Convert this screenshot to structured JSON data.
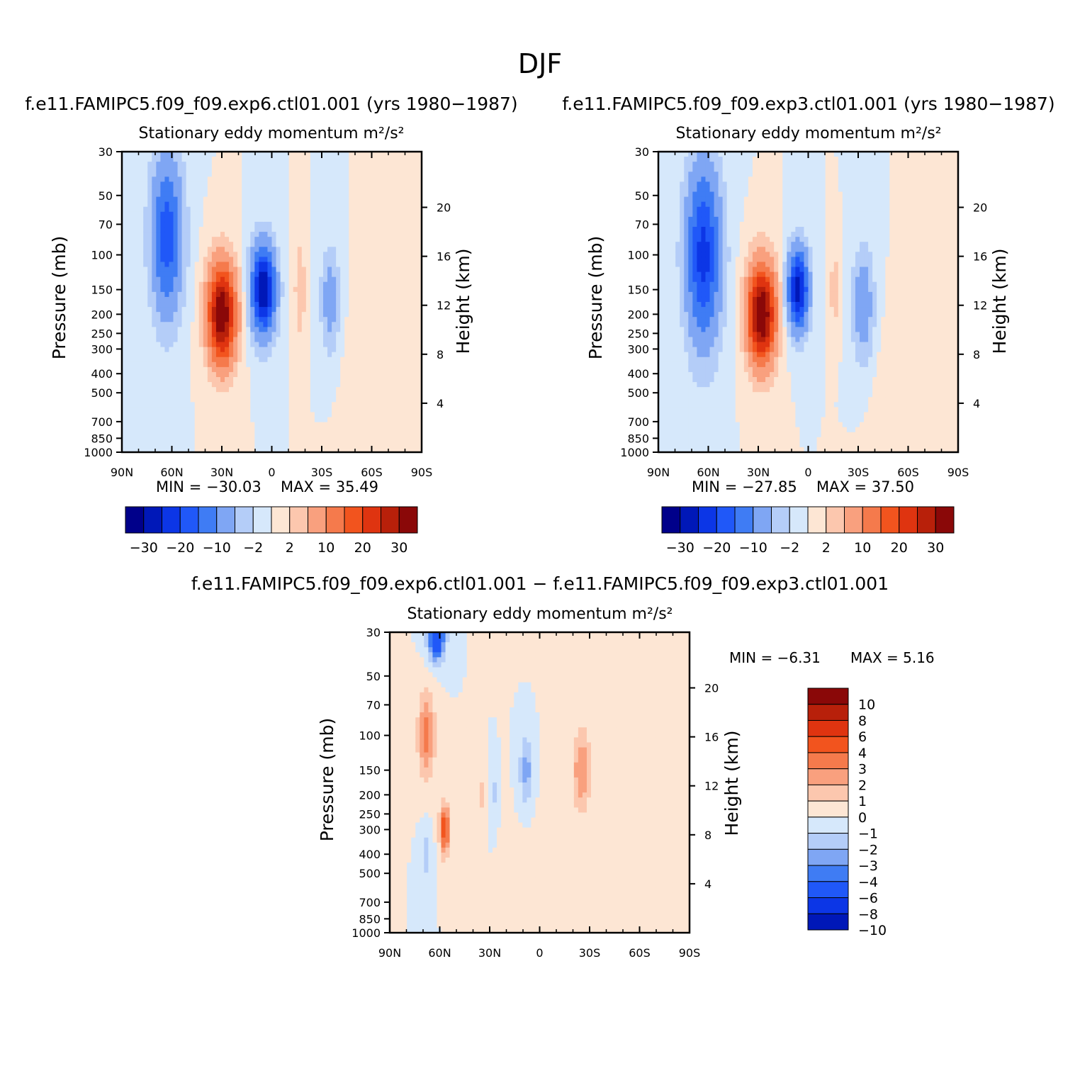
{
  "figure": {
    "title": "DJF",
    "colors": {
      "zero_fill": "#d6e8fb",
      "axis": "#000000",
      "palette": [
        "#00008a",
        "#0018b8",
        "#0c36e6",
        "#2058f8",
        "#3f7cf4",
        "#7fa6f4",
        "#b4cdf8",
        "#d6e8fb",
        "#fde6d4",
        "#fcc7ae",
        "#f9a07e",
        "#f57a4c",
        "#f2541e",
        "#df3410",
        "#b8200a",
        "#8a0808"
      ]
    }
  },
  "chart_data": [
    {
      "id": "exp6",
      "type": "heatmap",
      "title": "f.e11.FAMIPC5.f09_f09.exp6.ctl01.001 (yrs 1980−1987)",
      "subtitle": "Stationary eddy momentum  m²/s²",
      "xlabel": "",
      "ylabel": "Pressure (mb)",
      "ylabel_right": "Height (km)",
      "x_range": [
        90,
        -90
      ],
      "x_ticks": [
        "90N",
        "60N",
        "30N",
        "0",
        "30S",
        "60S",
        "90S"
      ],
      "y_range": [
        1000,
        30
      ],
      "y_scale": "log",
      "y_ticks": [
        "30",
        "50",
        "70",
        "100",
        "150",
        "200",
        "250",
        "300",
        "400",
        "500",
        "700",
        "850",
        "1000"
      ],
      "height_ticks": [
        "20",
        "16",
        "12",
        "8",
        "4"
      ],
      "min_label": "MIN =  −30.03",
      "max_label": "MAX =   35.49",
      "levels": [
        -35,
        -30,
        -25,
        -20,
        -15,
        -10,
        -5,
        -2,
        2,
        5,
        10,
        15,
        20,
        25,
        30,
        35
      ],
      "colorbar_labels": [
        "−30",
        "−20",
        "−10",
        "−2",
        "2",
        "10",
        "20",
        "30"
      ],
      "features": [
        {
          "lat": 63,
          "p": 80,
          "value": -18,
          "lat_width": 9,
          "p_width": 0.9
        },
        {
          "lat": 30,
          "p": 200,
          "value": 36,
          "lat_width": 8,
          "p_width": 0.55
        },
        {
          "lat": 5,
          "p": 150,
          "value": -30,
          "lat_width": 7,
          "p_width": 0.5
        },
        {
          "lat": -17,
          "p": 150,
          "value": 5,
          "lat_width": 3,
          "p_width": 0.5
        },
        {
          "lat": -35,
          "p": 170,
          "value": -8,
          "lat_width": 5,
          "p_width": 0.55
        },
        {
          "lat": -60,
          "p": 500,
          "value": 2,
          "lat_width": 12,
          "p_width": 0.8
        }
      ]
    },
    {
      "id": "exp3",
      "type": "heatmap",
      "title": "f.e11.FAMIPC5.f09_f09.exp3.ctl01.001 (yrs 1980−1987)",
      "subtitle": "Stationary eddy momentum  m²/s²",
      "xlabel": "",
      "ylabel": "Pressure (mb)",
      "ylabel_right": "Height (km)",
      "x_range": [
        90,
        -90
      ],
      "x_ticks": [
        "90N",
        "60N",
        "30N",
        "0",
        "30S",
        "60S",
        "90S"
      ],
      "y_range": [
        1000,
        30
      ],
      "y_scale": "log",
      "y_ticks": [
        "30",
        "50",
        "70",
        "100",
        "150",
        "200",
        "250",
        "300",
        "400",
        "500",
        "700",
        "850",
        "1000"
      ],
      "height_ticks": [
        "20",
        "16",
        "12",
        "8",
        "4"
      ],
      "min_label": "MIN =  −27.85",
      "max_label": "MAX =   37.50",
      "levels": [
        -35,
        -30,
        -25,
        -20,
        -15,
        -10,
        -5,
        -2,
        2,
        5,
        10,
        15,
        20,
        25,
        30,
        35
      ],
      "colorbar_labels": [
        "−30",
        "−20",
        "−10",
        "−2",
        "2",
        "10",
        "20",
        "30"
      ],
      "features": [
        {
          "lat": 63,
          "p": 100,
          "value": -22,
          "lat_width": 10,
          "p_width": 1.0
        },
        {
          "lat": 28,
          "p": 200,
          "value": 37,
          "lat_width": 8,
          "p_width": 0.55
        },
        {
          "lat": 6,
          "p": 150,
          "value": -28,
          "lat_width": 6,
          "p_width": 0.45
        },
        {
          "lat": -16,
          "p": 150,
          "value": 4,
          "lat_width": 3,
          "p_width": 0.4
        },
        {
          "lat": -33,
          "p": 180,
          "value": -9,
          "lat_width": 6,
          "p_width": 0.6
        },
        {
          "lat": -55,
          "p": 600,
          "value": 2,
          "lat_width": 12,
          "p_width": 0.8
        }
      ]
    },
    {
      "id": "diff",
      "type": "heatmap",
      "title": "f.e11.FAMIPC5.f09_f09.exp6.ctl01.001 − f.e11.FAMIPC5.f09_f09.exp3.ctl01.001",
      "subtitle": "Stationary eddy momentum  m²/s²",
      "xlabel": "",
      "ylabel": "Pressure (mb)",
      "ylabel_right": "Height (km)",
      "x_range": [
        90,
        -90
      ],
      "x_ticks": [
        "90N",
        "60N",
        "30N",
        "0",
        "30S",
        "60S",
        "90S"
      ],
      "y_range": [
        1000,
        30
      ],
      "y_scale": "log",
      "y_ticks": [
        "30",
        "50",
        "70",
        "100",
        "150",
        "200",
        "250",
        "300",
        "400",
        "500",
        "700",
        "850",
        "1000"
      ],
      "height_ticks": [
        "20",
        "16",
        "12",
        "8",
        "4"
      ],
      "min_label": "MIN =    −6.31",
      "max_label": "MAX =     5.16",
      "levels": [
        -12,
        -10,
        -8,
        -6,
        -4,
        -3,
        -2,
        -1,
        0,
        1,
        2,
        3,
        4,
        6,
        8,
        10,
        12
      ],
      "colorbar_labels": [
        "10",
        "8",
        "6",
        "4",
        "3",
        "2",
        "1",
        "0",
        "−1",
        "−2",
        "−3",
        "−4",
        "−6",
        "−8",
        "−10"
      ],
      "features": [
        {
          "lat": 62,
          "p": 32,
          "value": -6.3,
          "lat_width": 5,
          "p_width": 0.25
        },
        {
          "lat": 68,
          "p": 100,
          "value": 3.5,
          "lat_width": 5,
          "p_width": 0.5
        },
        {
          "lat": 57,
          "p": 300,
          "value": 5.1,
          "lat_width": 3,
          "p_width": 0.3
        },
        {
          "lat": 68,
          "p": 400,
          "value": -1.5,
          "lat_width": 3,
          "p_width": 0.3
        },
        {
          "lat": 34,
          "p": 200,
          "value": 1.5,
          "lat_width": 2,
          "p_width": 0.3
        },
        {
          "lat": 28,
          "p": 200,
          "value": -1.5,
          "lat_width": 2,
          "p_width": 0.3
        },
        {
          "lat": 8,
          "p": 150,
          "value": -2.5,
          "lat_width": 4,
          "p_width": 0.4
        },
        {
          "lat": -25,
          "p": 150,
          "value": 2.8,
          "lat_width": 5,
          "p_width": 0.45
        },
        {
          "lat": -60,
          "p": 200,
          "value": 0.8,
          "lat_width": 30,
          "p_width": 1.8
        },
        {
          "lat": 0,
          "p": 600,
          "value": 0.4,
          "lat_width": 15,
          "p_width": 0.8
        }
      ]
    }
  ]
}
